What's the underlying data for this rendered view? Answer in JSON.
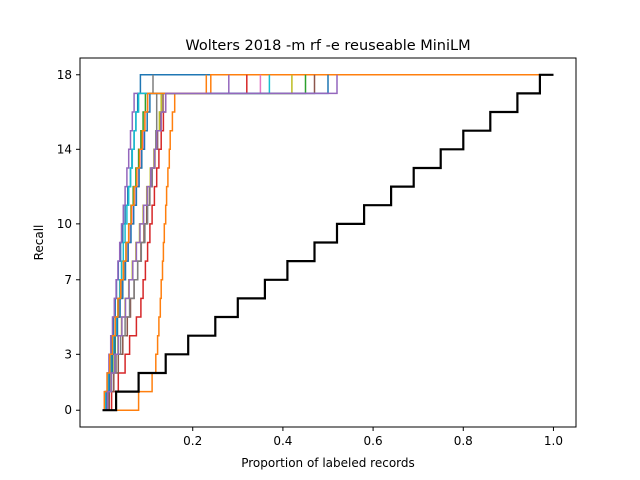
{
  "chart_data": {
    "type": "line",
    "title": "Wolters 2018 -m rf -e reuseable MiniLM",
    "xlabel": "Proportion of labeled records",
    "ylabel": "Recall",
    "xlim": [
      -0.05,
      1.05
    ],
    "ylim": [
      -0.9,
      18.9
    ],
    "x_ticks": [
      0.2,
      0.4,
      0.6,
      0.8,
      1.0
    ],
    "x_tick_labels": [
      "0.2",
      "0.4",
      "0.6",
      "0.8",
      "1.0"
    ],
    "y_ticks": [
      0,
      3,
      7,
      10,
      14,
      18
    ],
    "y_tick_labels": [
      "0",
      "3",
      "7",
      "10",
      "14",
      "18"
    ],
    "grid": false,
    "legend": "none",
    "simulations": [
      {
        "color": "#1f77b4",
        "x": [
          0,
          0.007,
          0.012,
          0.016,
          0.02,
          0.024,
          0.028,
          0.031,
          0.035,
          0.04,
          0.045,
          0.05,
          0.056,
          0.062,
          0.065,
          0.07,
          0.074,
          0.078,
          0.084,
          0.39
        ],
        "y": [
          0,
          1,
          2,
          3,
          4,
          5,
          6,
          7,
          8,
          9,
          10,
          11,
          12,
          13,
          14,
          15,
          16,
          17,
          18,
          18
        ]
      },
      {
        "color": "#ff7f0e",
        "x": [
          0,
          0.08,
          0.11,
          0.118,
          0.122,
          0.125,
          0.128,
          0.13,
          0.133,
          0.135,
          0.137,
          0.14,
          0.142,
          0.145,
          0.148,
          0.15,
          0.155,
          0.16,
          0.24,
          1.0
        ],
        "y": [
          0,
          1,
          2,
          3,
          4,
          5,
          6,
          7,
          8,
          9,
          10,
          11,
          12,
          13,
          14,
          15,
          16,
          17,
          18,
          18
        ]
      },
      {
        "color": "#2ca02c",
        "x": [
          0,
          0.01,
          0.016,
          0.022,
          0.028,
          0.033,
          0.037,
          0.042,
          0.047,
          0.052,
          0.058,
          0.063,
          0.068,
          0.074,
          0.08,
          0.085,
          0.09,
          0.095,
          0.45
        ],
        "y": [
          0,
          1,
          2,
          3,
          4,
          5,
          6,
          7,
          8,
          9,
          10,
          11,
          12,
          13,
          14,
          15,
          16,
          17,
          18
        ]
      },
      {
        "color": "#d62728",
        "x": [
          0,
          0.02,
          0.035,
          0.05,
          0.06,
          0.075,
          0.085,
          0.09,
          0.095,
          0.1,
          0.105,
          0.11,
          0.115,
          0.12,
          0.125,
          0.13,
          0.135,
          0.14,
          0.32
        ],
        "y": [
          0,
          1,
          2,
          3,
          4,
          5,
          6,
          7,
          8,
          9,
          10,
          11,
          12,
          13,
          14,
          15,
          16,
          17,
          18
        ]
      },
      {
        "color": "#9467bd",
        "x": [
          0,
          0.005,
          0.01,
          0.014,
          0.018,
          0.022,
          0.026,
          0.03,
          0.034,
          0.038,
          0.042,
          0.046,
          0.05,
          0.054,
          0.058,
          0.062,
          0.066,
          0.07,
          0.28
        ],
        "y": [
          0,
          1,
          2,
          3,
          4,
          5,
          6,
          7,
          8,
          9,
          10,
          11,
          12,
          13,
          14,
          15,
          16,
          17,
          18
        ]
      },
      {
        "color": "#8c564b",
        "x": [
          0,
          0.015,
          0.025,
          0.035,
          0.045,
          0.055,
          0.062,
          0.07,
          0.078,
          0.085,
          0.092,
          0.098,
          0.104,
          0.11,
          0.116,
          0.122,
          0.128,
          0.134,
          0.47
        ],
        "y": [
          0,
          1,
          2,
          3,
          4,
          5,
          6,
          7,
          8,
          9,
          10,
          11,
          12,
          13,
          14,
          15,
          16,
          17,
          18
        ]
      },
      {
        "color": "#e377c2",
        "x": [
          0,
          0.008,
          0.014,
          0.02,
          0.026,
          0.032,
          0.038,
          0.044,
          0.05,
          0.056,
          0.062,
          0.068,
          0.074,
          0.08,
          0.086,
          0.09,
          0.094,
          0.1,
          0.35
        ],
        "y": [
          0,
          1,
          2,
          3,
          4,
          5,
          6,
          7,
          8,
          9,
          10,
          11,
          12,
          13,
          14,
          15,
          16,
          17,
          18
        ]
      },
      {
        "color": "#7f7f7f",
        "x": [
          0,
          0.012,
          0.02,
          0.03,
          0.04,
          0.05,
          0.06,
          0.07,
          0.078,
          0.086,
          0.094,
          0.1,
          0.105,
          0.11,
          0.115,
          0.118,
          0.12,
          0.12,
          0.112
        ],
        "y": [
          0,
          1,
          2,
          3,
          4,
          5,
          6,
          7,
          8,
          9,
          10,
          11,
          12,
          13,
          14,
          15,
          16,
          17,
          18
        ]
      },
      {
        "color": "#bcbd22",
        "x": [
          0,
          0.01,
          0.018,
          0.026,
          0.034,
          0.042,
          0.05,
          0.058,
          0.066,
          0.074,
          0.082,
          0.09,
          0.098,
          0.106,
          0.114,
          0.12,
          0.126,
          0.13,
          0.42
        ],
        "y": [
          0,
          1,
          2,
          3,
          4,
          5,
          6,
          7,
          8,
          9,
          10,
          11,
          12,
          13,
          14,
          15,
          16,
          17,
          18
        ]
      },
      {
        "color": "#17becf",
        "x": [
          0,
          0.006,
          0.012,
          0.018,
          0.024,
          0.03,
          0.034,
          0.038,
          0.042,
          0.046,
          0.05,
          0.054,
          0.058,
          0.062,
          0.066,
          0.07,
          0.074,
          0.08,
          0.37
        ],
        "y": [
          0,
          1,
          2,
          3,
          4,
          5,
          6,
          7,
          8,
          9,
          10,
          11,
          12,
          13,
          14,
          15,
          16,
          17,
          18
        ]
      },
      {
        "color": "#1f77b4",
        "x": [
          0,
          0.009,
          0.015,
          0.021,
          0.027,
          0.033,
          0.039,
          0.045,
          0.051,
          0.057,
          0.063,
          0.069,
          0.075,
          0.081,
          0.087,
          0.093,
          0.099,
          0.105,
          0.5
        ],
        "y": [
          0,
          1,
          2,
          3,
          4,
          5,
          6,
          7,
          8,
          9,
          10,
          11,
          12,
          13,
          14,
          15,
          16,
          17,
          18
        ]
      },
      {
        "color": "#ff7f0e",
        "x": [
          0,
          0.004,
          0.01,
          0.016,
          0.022,
          0.028,
          0.034,
          0.04,
          0.046,
          0.052,
          0.058,
          0.064,
          0.07,
          0.076,
          0.082,
          0.088,
          0.094,
          0.1,
          0.23
        ],
        "y": [
          0,
          1,
          2,
          3,
          4,
          5,
          6,
          7,
          8,
          9,
          10,
          11,
          12,
          13,
          14,
          15,
          16,
          17,
          18
        ]
      },
      {
        "color": "#9467bd",
        "x": [
          0,
          0.011,
          0.019,
          0.027,
          0.035,
          0.043,
          0.051,
          0.059,
          0.067,
          0.075,
          0.083,
          0.091,
          0.099,
          0.107,
          0.115,
          0.12,
          0.13,
          0.14,
          0.52
        ],
        "y": [
          0,
          1,
          2,
          3,
          4,
          5,
          6,
          7,
          8,
          9,
          10,
          11,
          12,
          13,
          14,
          15,
          16,
          17,
          18
        ]
      }
    ],
    "baseline": {
      "color": "#000000",
      "x": [
        0,
        0.03,
        0.08,
        0.14,
        0.19,
        0.25,
        0.3,
        0.36,
        0.41,
        0.47,
        0.52,
        0.58,
        0.64,
        0.69,
        0.75,
        0.8,
        0.86,
        0.92,
        0.97,
        1.0
      ],
      "y": [
        0,
        1,
        2,
        3,
        4,
        5,
        6,
        7,
        8,
        9,
        10,
        11,
        12,
        13,
        14,
        15,
        16,
        17,
        18,
        18
      ]
    }
  }
}
